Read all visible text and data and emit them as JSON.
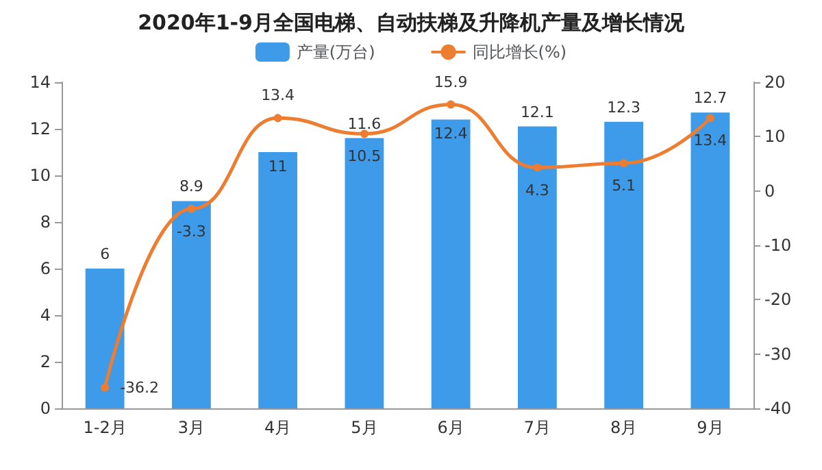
{
  "chart_data": {
    "type": "bar",
    "title": "2020年1-9月全国电梯、自动扶梯及升降机产量及增长情况",
    "categories": [
      "1-2月",
      "3月",
      "4月",
      "5月",
      "6月",
      "7月",
      "8月",
      "9月"
    ],
    "series": [
      {
        "name": "产量(万台)",
        "color": "#3d9be9",
        "values": [
          6,
          8.9,
          11,
          11.6,
          12.4,
          12.1,
          12.3,
          12.7
        ]
      },
      {
        "name": "同比增长(%)",
        "type": "line",
        "axis": "y2",
        "color": "#ed7d31",
        "values": [
          -36.2,
          -3.3,
          13.4,
          10.5,
          15.9,
          4.3,
          5.1,
          13.4
        ]
      }
    ],
    "ylim": [
      0,
      14
    ],
    "yticks": [
      0,
      2,
      4,
      6,
      8,
      10,
      12,
      14
    ],
    "y2lim": [
      -40,
      20
    ],
    "y2ticks": [
      -40,
      -30,
      -20,
      -10,
      0,
      10,
      20
    ],
    "data_labels": true,
    "legend": "top",
    "marker": "circle",
    "grid": false
  }
}
